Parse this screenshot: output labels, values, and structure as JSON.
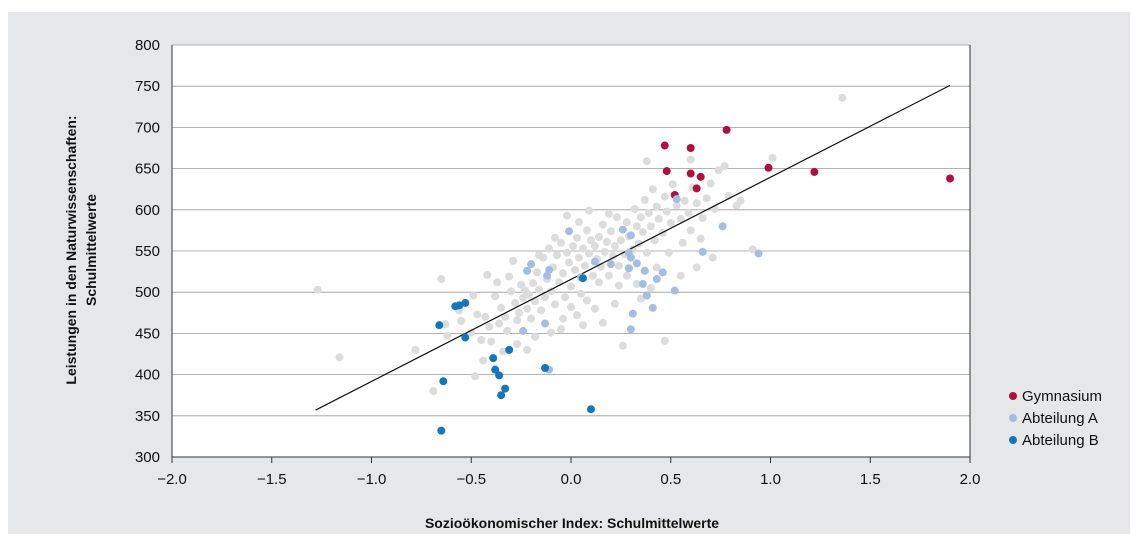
{
  "chart_data": {
    "type": "scatter",
    "xlabel": "Sozioökonomischer Index: Schulmittelwerte",
    "ylabel_line1": "Leistungen in den Naturwissenschaften:",
    "ylabel_line2": "Schulmittelwerte",
    "xlim": [
      -2.0,
      2.0
    ],
    "ylim": [
      300,
      800
    ],
    "xticks": [
      "−2.0",
      "−1.5",
      "−1.0",
      "−0.5",
      "0.0",
      "0.5",
      "1.0",
      "1.5",
      "2.0"
    ],
    "yticks": [
      "300",
      "350",
      "400",
      "450",
      "500",
      "550",
      "600",
      "650",
      "700",
      "750",
      "800"
    ],
    "grid": "horizontal",
    "legend_position": "right",
    "regression_line": {
      "x": [
        -1.28,
        1.9
      ],
      "y": [
        357,
        751
      ]
    },
    "series": [
      {
        "name": "Gymnasium",
        "color": "#b0103f",
        "points": [
          [
            0.47,
            678
          ],
          [
            0.78,
            697
          ],
          [
            0.6,
            675
          ],
          [
            0.48,
            647
          ],
          [
            0.6,
            644
          ],
          [
            0.65,
            640
          ],
          [
            0.63,
            626
          ],
          [
            0.52,
            618
          ],
          [
            0.99,
            651
          ],
          [
            1.22,
            646
          ],
          [
            1.9,
            638
          ]
        ]
      },
      {
        "name": "Abteilung A",
        "color": "#a3bee2",
        "points": [
          [
            -0.01,
            574
          ],
          [
            0.26,
            576
          ],
          [
            0.3,
            569
          ],
          [
            0.53,
            613
          ],
          [
            0.76,
            580
          ],
          [
            -0.2,
            534
          ],
          [
            -0.22,
            526
          ],
          [
            -0.11,
            527
          ],
          [
            -0.12,
            520
          ],
          [
            0.12,
            537
          ],
          [
            0.29,
            548
          ],
          [
            0.3,
            542
          ],
          [
            0.33,
            535
          ],
          [
            0.37,
            526
          ],
          [
            0.46,
            524
          ],
          [
            0.43,
            516
          ],
          [
            0.66,
            549
          ],
          [
            0.94,
            547
          ],
          [
            0.29,
            529
          ],
          [
            0.38,
            496
          ],
          [
            0.52,
            502
          ],
          [
            0.41,
            481
          ],
          [
            0.31,
            474
          ],
          [
            0.3,
            455
          ],
          [
            -0.24,
            453
          ],
          [
            -0.13,
            462
          ],
          [
            -0.11,
            406
          ],
          [
            0.2,
            534
          ],
          [
            0.05,
            518
          ],
          [
            0.36,
            510
          ]
        ]
      },
      {
        "name": "Abteilung B",
        "color": "#1576b8",
        "points": [
          [
            -0.66,
            460
          ],
          [
            -0.58,
            483
          ],
          [
            -0.56,
            484
          ],
          [
            -0.53,
            487
          ],
          [
            -0.53,
            445
          ],
          [
            -0.39,
            420
          ],
          [
            -0.38,
            406
          ],
          [
            -0.36,
            399
          ],
          [
            -0.31,
            430
          ],
          [
            -0.33,
            383
          ],
          [
            -0.35,
            375
          ],
          [
            -0.64,
            392
          ],
          [
            -0.65,
            332
          ],
          [
            -0.13,
            408
          ],
          [
            0.06,
            517
          ],
          [
            0.1,
            358
          ]
        ]
      }
    ],
    "background_points": {
      "name": "",
      "color": "#ffffff",
      "points": [
        [
          -1.27,
          503
        ],
        [
          -1.16,
          421
        ],
        [
          -0.78,
          430
        ],
        [
          -0.69,
          380
        ],
        [
          -0.65,
          516
        ],
        [
          -0.63,
          461
        ],
        [
          -0.62,
          447
        ],
        [
          -0.55,
          465
        ],
        [
          -0.5,
          451
        ],
        [
          -0.47,
          473
        ],
        [
          -0.45,
          442
        ],
        [
          -0.43,
          470
        ],
        [
          -0.41,
          458
        ],
        [
          -0.4,
          440
        ],
        [
          -0.38,
          495
        ],
        [
          -0.36,
          462
        ],
        [
          -0.35,
          481
        ],
        [
          -0.33,
          470
        ],
        [
          -0.32,
          453
        ],
        [
          -0.3,
          501
        ],
        [
          -0.28,
          487
        ],
        [
          -0.27,
          466
        ],
        [
          -0.26,
          475
        ],
        [
          -0.25,
          509
        ],
        [
          -0.24,
          493
        ],
        [
          -0.22,
          480
        ],
        [
          -0.21,
          497
        ],
        [
          -0.2,
          468
        ],
        [
          -0.19,
          511
        ],
        [
          -0.18,
          489
        ],
        [
          -0.17,
          524
        ],
        [
          -0.16,
          503
        ],
        [
          -0.15,
          478
        ],
        [
          -0.14,
          542
        ],
        [
          -0.13,
          494
        ],
        [
          -0.12,
          516
        ],
        [
          -0.11,
          553
        ],
        [
          -0.1,
          501
        ],
        [
          -0.09,
          530
        ],
        [
          -0.08,
          485
        ],
        [
          -0.07,
          545
        ],
        [
          -0.06,
          512
        ],
        [
          -0.05,
          560
        ],
        [
          -0.04,
          523
        ],
        [
          -0.03,
          494
        ],
        [
          -0.02,
          548
        ],
        [
          -0.01,
          536
        ],
        [
          0.0,
          507
        ],
        [
          0.01,
          556
        ],
        [
          0.02,
          527
        ],
        [
          0.03,
          566
        ],
        [
          0.04,
          542
        ],
        [
          0.05,
          498
        ],
        [
          0.06,
          553
        ],
        [
          0.07,
          532
        ],
        [
          0.08,
          575
        ],
        [
          0.09,
          547
        ],
        [
          0.1,
          563
        ],
        [
          0.11,
          520
        ],
        [
          0.12,
          556
        ],
        [
          0.13,
          540
        ],
        [
          0.14,
          567
        ],
        [
          0.15,
          531
        ],
        [
          0.16,
          582
        ],
        [
          0.17,
          549
        ],
        [
          0.18,
          561
        ],
        [
          0.19,
          520
        ],
        [
          0.2,
          574
        ],
        [
          0.21,
          544
        ],
        [
          0.22,
          556
        ],
        [
          0.23,
          591
        ],
        [
          0.24,
          532
        ],
        [
          0.25,
          563
        ],
        [
          0.27,
          546
        ],
        [
          0.28,
          585
        ],
        [
          0.29,
          568
        ],
        [
          0.31,
          552
        ],
        [
          0.32,
          601
        ],
        [
          0.33,
          580
        ],
        [
          0.34,
          559
        ],
        [
          0.35,
          591
        ],
        [
          0.36,
          573
        ],
        [
          0.37,
          612
        ],
        [
          0.38,
          548
        ],
        [
          0.39,
          596
        ],
        [
          0.4,
          580
        ],
        [
          0.41,
          625
        ],
        [
          0.42,
          563
        ],
        [
          0.43,
          604
        ],
        [
          0.44,
          589
        ],
        [
          0.46,
          572
        ],
        [
          0.47,
          616
        ],
        [
          0.48,
          598
        ],
        [
          0.5,
          584
        ],
        [
          0.51,
          631
        ],
        [
          0.53,
          605
        ],
        [
          0.55,
          589
        ],
        [
          0.57,
          611
        ],
        [
          0.59,
          596
        ],
        [
          0.61,
          627
        ],
        [
          0.63,
          608
        ],
        [
          0.66,
          590
        ],
        [
          0.68,
          614
        ],
        [
          0.7,
          632
        ],
        [
          0.72,
          601
        ],
        [
          0.74,
          648
        ],
        [
          0.77,
          653
        ],
        [
          0.79,
          617
        ],
        [
          0.83,
          605
        ],
        [
          0.85,
          611
        ],
        [
          0.91,
          552
        ],
        [
          1.01,
          663
        ],
        [
          1.36,
          736
        ],
        [
          0.6,
          661
        ],
        [
          0.38,
          659
        ],
        [
          -0.56,
          478
        ],
        [
          -0.49,
          496
        ],
        [
          -0.42,
          521
        ],
        [
          -0.37,
          512
        ],
        [
          -0.31,
          519
        ],
        [
          -0.29,
          538
        ],
        [
          -0.23,
          502
        ],
        [
          -0.16,
          545
        ],
        [
          -0.08,
          566
        ],
        [
          -0.02,
          593
        ],
        [
          0.04,
          585
        ],
        [
          0.09,
          599
        ],
        [
          0.14,
          512
        ],
        [
          0.19,
          595
        ],
        [
          0.24,
          508
        ],
        [
          0.28,
          520
        ],
        [
          0.33,
          510
        ],
        [
          0.43,
          530
        ],
        [
          0.49,
          548
        ],
        [
          0.56,
          560
        ],
        [
          0.6,
          575
        ],
        [
          0.65,
          565
        ],
        [
          0.71,
          542
        ],
        [
          0.47,
          441
        ],
        [
          0.26,
          435
        ],
        [
          0.16,
          463
        ],
        [
          0.03,
          472
        ],
        [
          -0.04,
          468
        ],
        [
          -0.1,
          451
        ],
        [
          -0.18,
          446
        ],
        [
          -0.27,
          437
        ],
        [
          -0.34,
          428
        ],
        [
          -0.44,
          417
        ],
        [
          -0.48,
          398
        ],
        [
          -0.22,
          430
        ],
        [
          0.0,
          482
        ],
        [
          0.08,
          490
        ],
        [
          0.12,
          480
        ],
        [
          0.22,
          486
        ],
        [
          0.35,
          492
        ],
        [
          0.4,
          505
        ],
        [
          0.55,
          520
        ],
        [
          0.63,
          530
        ],
        [
          -0.05,
          455
        ],
        [
          0.06,
          460
        ]
      ]
    }
  }
}
